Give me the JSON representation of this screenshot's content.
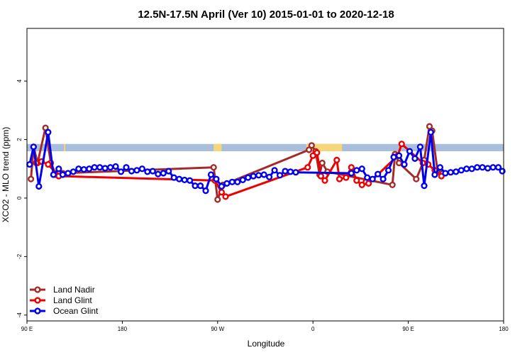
{
  "chart_data": {
    "type": "line",
    "title": "12.5N-17.5N April (Ver 10)   2015-01-01 to 2020-12-18",
    "xlabel": "Longitude",
    "ylabel": "XCO2 - MLO trend (ppm)",
    "xlim": [
      90,
      450
    ],
    "ylim": [
      -4.2,
      5.8
    ],
    "x_ticks": [
      {
        "value": 90,
        "label": "90 E"
      },
      {
        "value": 162,
        "label": "180"
      },
      {
        "value": 234,
        "label": "90 W"
      },
      {
        "value": 306,
        "label": "0"
      },
      {
        "value": 378,
        "label": "90 E"
      },
      {
        "value": 450,
        "label": "180"
      }
    ],
    "y_ticks": [
      {
        "value": -4,
        "label": "-4"
      },
      {
        "value": -2,
        "label": "-2"
      },
      {
        "value": 0,
        "label": "0"
      },
      {
        "value": 2,
        "label": "2"
      },
      {
        "value": 4,
        "label": "4"
      }
    ],
    "grid": false,
    "legend_position": "bottom-left",
    "band": {
      "y_range": [
        1.6,
        1.85
      ],
      "sea_color": "#a8bedc",
      "land_color": "#f5d77a",
      "land_segments": [
        [
          118,
          119
        ],
        [
          231,
          237
        ],
        [
          301,
          328
        ],
        [
          397,
          398
        ]
      ]
    },
    "series": [
      {
        "name": "Land Nadir",
        "color": "#a52a2a",
        "points": [
          [
            93,
            0.65
          ],
          [
            95,
            1.75
          ],
          [
            98,
            1.2
          ],
          [
            104,
            2.4
          ],
          [
            108,
            1.2
          ],
          [
            112,
            0.8
          ],
          [
            117,
            0.85
          ],
          [
            231,
            1.05
          ],
          [
            234,
            -0.05
          ],
          [
            238,
            0.45
          ],
          [
            303,
            1.65
          ],
          [
            305,
            1.8
          ],
          [
            308,
            1.6
          ],
          [
            311,
            0.8
          ],
          [
            313,
            1.2
          ],
          [
            317,
            0.9
          ],
          [
            366,
            0.45
          ],
          [
            368,
            1.5
          ],
          [
            371,
            1.2
          ],
          [
            384,
            0.65
          ],
          [
            390,
            1.3
          ],
          [
            394,
            2.45
          ],
          [
            396,
            2.3
          ],
          [
            400,
            0.95
          ],
          [
            404,
            0.85
          ]
        ]
      },
      {
        "name": "Land Glint",
        "color": "#ee0000",
        "points": [
          [
            97,
            1.2
          ],
          [
            101,
            1.25
          ],
          [
            106,
            1.15
          ],
          [
            114,
            0.75
          ],
          [
            232,
            0.6
          ],
          [
            237,
            0.2
          ],
          [
            240,
            0.05
          ],
          [
            302,
            1.05
          ],
          [
            306,
            1.45
          ],
          [
            309,
            1.55
          ],
          [
            312,
            0.75
          ],
          [
            315,
            0.6
          ],
          [
            324,
            1.3
          ],
          [
            326,
            0.65
          ],
          [
            331,
            0.7
          ],
          [
            335,
            1.05
          ],
          [
            339,
            0.6
          ],
          [
            343,
            0.45
          ],
          [
            346,
            0.55
          ],
          [
            348,
            0.5
          ],
          [
            370,
            1.45
          ],
          [
            373,
            1.85
          ],
          [
            389,
            1.2
          ],
          [
            393,
            1.15
          ],
          [
            398,
            0.95
          ],
          [
            403,
            0.75
          ]
        ]
      },
      {
        "name": "Ocean Glint",
        "color": "#0000ee",
        "points": [
          [
            92,
            1.15
          ],
          [
            95,
            1.75
          ],
          [
            99,
            0.4
          ],
          [
            106,
            2.25
          ],
          [
            110,
            0.8
          ],
          [
            114,
            1.0
          ],
          [
            117,
            0.8
          ],
          [
            121,
            0.85
          ],
          [
            125,
            0.9
          ],
          [
            129,
            1.0
          ],
          [
            133,
            0.98
          ],
          [
            137,
            1.0
          ],
          [
            141,
            1.05
          ],
          [
            145,
            1.05
          ],
          [
            149,
            1.02
          ],
          [
            153,
            1.05
          ],
          [
            157,
            1.08
          ],
          [
            161,
            0.9
          ],
          [
            165,
            1.05
          ],
          [
            169,
            0.92
          ],
          [
            173,
            0.95
          ],
          [
            177,
            1.0
          ],
          [
            181,
            0.9
          ],
          [
            185,
            0.92
          ],
          [
            189,
            0.82
          ],
          [
            193,
            0.85
          ],
          [
            197,
            0.92
          ],
          [
            201,
            0.7
          ],
          [
            205,
            0.65
          ],
          [
            209,
            0.62
          ],
          [
            213,
            0.6
          ],
          [
            217,
            0.42
          ],
          [
            221,
            0.42
          ],
          [
            225,
            0.25
          ],
          [
            229,
            0.8
          ],
          [
            233,
            0.65
          ],
          [
            237,
            0.4
          ],
          [
            241,
            0.5
          ],
          [
            245,
            0.55
          ],
          [
            249,
            0.55
          ],
          [
            253,
            0.62
          ],
          [
            257,
            0.7
          ],
          [
            261,
            0.75
          ],
          [
            265,
            0.78
          ],
          [
            269,
            0.8
          ],
          [
            273,
            0.72
          ],
          [
            277,
            0.95
          ],
          [
            281,
            0.78
          ],
          [
            285,
            0.92
          ],
          [
            289,
            0.9
          ],
          [
            293,
            0.88
          ],
          [
            335,
            0.85
          ],
          [
            339,
            0.95
          ],
          [
            343,
            1.0
          ],
          [
            347,
            0.7
          ],
          [
            351,
            0.65
          ],
          [
            355,
            0.82
          ],
          [
            359,
            0.65
          ],
          [
            363,
            0.95
          ],
          [
            367,
            1.4
          ],
          [
            371,
            1.45
          ],
          [
            375,
            1.15
          ],
          [
            379,
            1.6
          ],
          [
            383,
            1.35
          ],
          [
            387,
            1.75
          ],
          [
            390,
            0.42
          ],
          [
            395,
            2.25
          ],
          [
            398,
            0.8
          ],
          [
            402,
            1.05
          ],
          [
            406,
            0.85
          ],
          [
            410,
            0.88
          ],
          [
            414,
            0.9
          ],
          [
            418,
            0.95
          ],
          [
            422,
            1.0
          ],
          [
            426,
            1.0
          ],
          [
            430,
            1.05
          ],
          [
            434,
            1.05
          ],
          [
            438,
            1.02
          ],
          [
            442,
            1.05
          ],
          [
            446,
            1.05
          ],
          [
            449,
            0.92
          ]
        ]
      }
    ]
  }
}
